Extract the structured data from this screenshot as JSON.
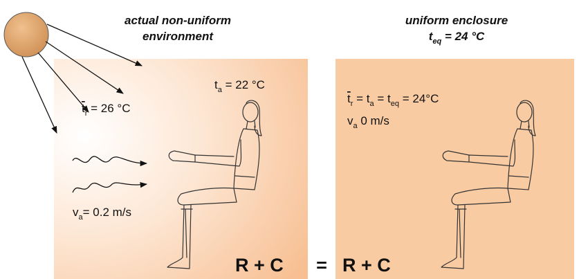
{
  "left_panel": {
    "title": [
      "actual non-uniform",
      "environment"
    ],
    "radiant_temp": {
      "symbol": "t",
      "sub": "r",
      "rest": " = 26 °C"
    },
    "air_temp": {
      "symbol": "t",
      "sub": "a",
      "rest": " = 22 °C"
    },
    "air_speed": {
      "symbol": "v",
      "sub": "a",
      "rest": "= 0.2 m/s"
    },
    "heat_exchange": "R + C"
  },
  "equals": "=",
  "right_panel": {
    "title": "uniform enclosure",
    "subtitle": {
      "symbol": "t",
      "sub": "eq",
      "rest": " = 24 °C"
    },
    "temps": {
      "s1": "t",
      "b1": "r",
      "m1": " = t",
      "b2": "a",
      "m2": " = t",
      "b3": "eq",
      "rest": " = 24°C"
    },
    "air_speed": {
      "symbol": "v",
      "sub": "a",
      "rest": " 0 m/s"
    },
    "heat_exchange": "R + C"
  }
}
